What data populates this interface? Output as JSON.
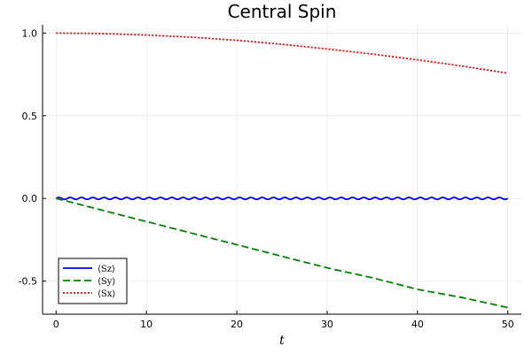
{
  "chart_data": {
    "type": "line",
    "title": "Central Spin",
    "xlabel": "t",
    "ylabel": "",
    "xlim": [
      -1.5,
      51.5
    ],
    "ylim": [
      -0.7,
      1.05
    ],
    "xticks": [
      0,
      10,
      20,
      30,
      40,
      50
    ],
    "yticks": [
      -0.5,
      0.0,
      0.5,
      1.0
    ],
    "xtick_labels": [
      "0",
      "10",
      "20",
      "30",
      "40",
      "50"
    ],
    "ytick_labels": [
      "-0.5",
      "0.0",
      "0.5",
      "1.0"
    ],
    "grid": true,
    "legend_position": "bottom-left",
    "series": [
      {
        "name": "⟨Sz⟩",
        "color": "#0000ff",
        "style": "solid",
        "x": [
          0,
          2,
          4,
          6,
          8,
          10,
          12,
          14,
          16,
          18,
          20,
          22,
          24,
          26,
          28,
          30,
          32,
          34,
          36,
          38,
          40,
          42,
          44,
          46,
          48,
          50
        ],
        "y": [
          0.0,
          0.0,
          0.0,
          0.0,
          0.0,
          0.0,
          0.0,
          0.0,
          0.0,
          0.0,
          0.0,
          0.0,
          0.0,
          0.0,
          0.0,
          0.0,
          0.0,
          0.0,
          0.0,
          0.0,
          0.0,
          0.0,
          0.0,
          0.0,
          0.0,
          0.0
        ]
      },
      {
        "name": "⟨Sy⟩",
        "color": "#008000",
        "style": "dashed",
        "x": [
          0,
          5,
          10,
          15,
          20,
          25,
          30,
          35,
          40,
          45,
          50
        ],
        "y": [
          0.0,
          -0.07,
          -0.14,
          -0.21,
          -0.28,
          -0.35,
          -0.42,
          -0.48,
          -0.55,
          -0.6,
          -0.66
        ]
      },
      {
        "name": "⟨Sx⟩",
        "color": "#ff0000",
        "style": "dotted",
        "x": [
          0,
          5,
          10,
          15,
          20,
          25,
          30,
          35,
          40,
          45,
          50
        ],
        "y": [
          1.0,
          0.997,
          0.988,
          0.975,
          0.956,
          0.932,
          0.904,
          0.873,
          0.838,
          0.8,
          0.757
        ]
      }
    ]
  }
}
